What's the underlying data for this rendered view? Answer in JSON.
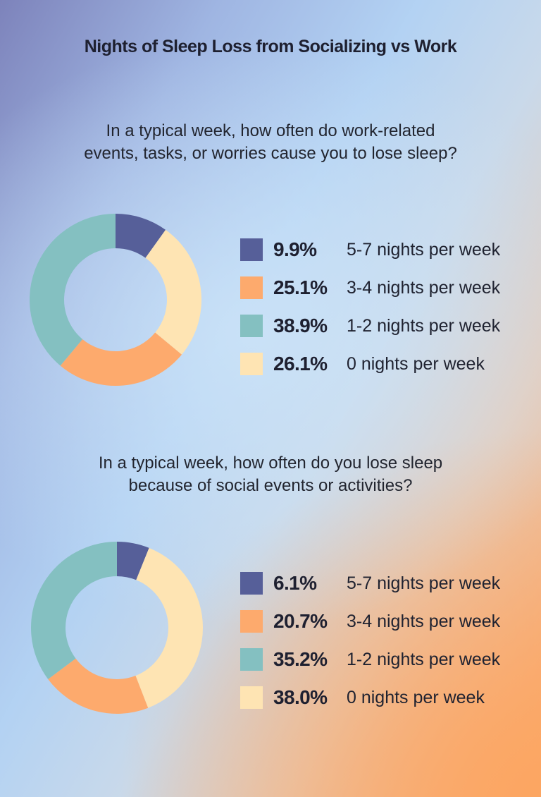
{
  "title": "Nights of Sleep Loss from Socializing vs Work",
  "colors": {
    "5-7": "#565f99",
    "3-4": "#fdaa6d",
    "1-2": "#84c0c1",
    "0": "#fee4b3"
  },
  "charts": [
    {
      "question_line1": "In a typical week, how often do work-related",
      "question_line2": "events, tasks, or worries cause you to lose sleep?",
      "legend": [
        {
          "pct": "9.9%",
          "label": "5-7 nights per week",
          "color": "#565f99"
        },
        {
          "pct": "25.1%",
          "label": "3-4 nights per week",
          "color": "#fdaa6d"
        },
        {
          "pct": "38.9%",
          "label": "1-2 nights per week",
          "color": "#84c0c1"
        },
        {
          "pct": "26.1%",
          "label": "0 nights per week",
          "color": "#fee4b3"
        }
      ]
    },
    {
      "question_line1": "In a typical week, how often do you lose sleep",
      "question_line2": "because of social events or activities?",
      "legend": [
        {
          "pct": "6.1%",
          "label": "5-7 nights per week",
          "color": "#565f99"
        },
        {
          "pct": "20.7%",
          "label": "3-4 nights per week",
          "color": "#fdaa6d"
        },
        {
          "pct": "35.2%",
          "label": "1-2 nights per week",
          "color": "#84c0c1"
        },
        {
          "pct": "38.0%",
          "label": "0 nights per week",
          "color": "#fee4b3"
        }
      ]
    }
  ],
  "chart_data": [
    {
      "type": "pie",
      "variant": "donut",
      "title": "In a typical week, how often do work-related events, tasks, or worries cause you to lose sleep?",
      "categories": [
        "5-7 nights per week",
        "3-4 nights per week",
        "1-2 nights per week",
        "0 nights per week"
      ],
      "values": [
        9.9,
        25.1,
        38.9,
        26.1
      ],
      "unit": "%",
      "colors": [
        "#565f99",
        "#fdaa6d",
        "#84c0c1",
        "#fee4b3"
      ],
      "draw_order_clockwise_from_top": [
        "5-7 nights per week",
        "0 nights per week",
        "3-4 nights per week",
        "1-2 nights per week"
      ],
      "legend_position": "right"
    },
    {
      "type": "pie",
      "variant": "donut",
      "title": "In a typical week, how often do you lose sleep because of social events or activities?",
      "categories": [
        "5-7 nights per week",
        "3-4 nights per week",
        "1-2 nights per week",
        "0 nights per week"
      ],
      "values": [
        6.1,
        20.7,
        35.2,
        38.0
      ],
      "unit": "%",
      "colors": [
        "#565f99",
        "#fdaa6d",
        "#84c0c1",
        "#fee4b3"
      ],
      "draw_order_clockwise_from_top": [
        "5-7 nights per week",
        "0 nights per week",
        "3-4 nights per week",
        "1-2 nights per week"
      ],
      "legend_position": "right"
    }
  ]
}
